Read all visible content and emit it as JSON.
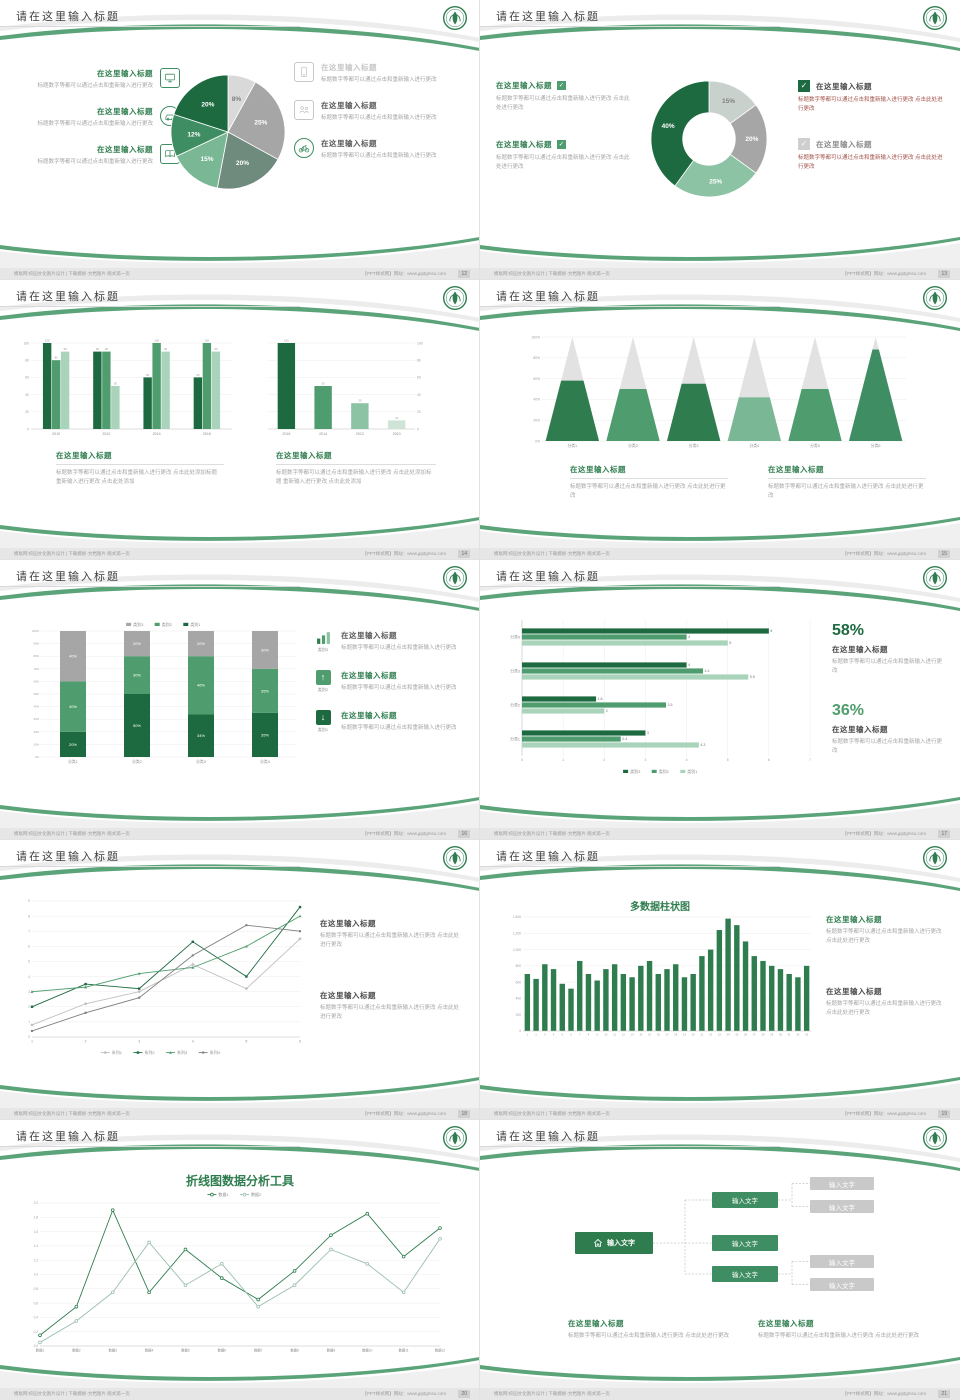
{
  "common": {
    "slide_title": "请在这里输入标题",
    "ph_title": "在这里输入标题",
    "body_short": "标题数字等都可以通过点击和重新输入进行更改",
    "body_med": "标题数字等都可以通过点击和重新输入进行更改 点击此处进行更改",
    "body_long": "标题数字等都可以通过点击和重新输入进行更改 点击此处添加标题 重新输入进行更改 点击此处添加",
    "footer_left": "模板网:校园文化图片设计 | 下载模板-文档图片-版式第一页",
    "footer_right": "【PPT样式网】网站：www.jpptgmsu.com",
    "colors": {
      "dark_green": "#1d6a40",
      "green": "#2f7d4f",
      "mid_green": "#4f9d6e",
      "light_green": "#8cc3a4",
      "gray": "#a6a6a6",
      "light_gray": "#d9d9d9"
    }
  },
  "slides": {
    "s12": {
      "page": "12",
      "left": [
        {
          "icon": "monitor-icon"
        },
        {
          "icon": "car-icon"
        },
        {
          "icon": "book-icon"
        }
      ],
      "right": [
        {
          "icon": "phone-icon"
        },
        {
          "icon": "people-icon"
        },
        {
          "icon": "bicycle-icon"
        }
      ]
    },
    "s13": {
      "page": "13"
    },
    "s14": {
      "page": "14"
    },
    "s15": {
      "page": "15"
    },
    "s16": {
      "page": "16",
      "items": [
        {
          "icon": "bar-chart-icon",
          "label": "类别3"
        },
        {
          "icon": "arrow-up-icon",
          "label": "类别2"
        },
        {
          "icon": "arrow-down-icon",
          "label": "类别1"
        }
      ]
    },
    "s17": {
      "page": "17",
      "stats": [
        {
          "pct": "58%"
        },
        {
          "pct": "36%"
        }
      ]
    },
    "s18": {
      "page": "18"
    },
    "s19": {
      "page": "19",
      "chart_title": "多数据柱状图"
    },
    "s20": {
      "page": "20",
      "chart_title": "折线图数据分析工具"
    },
    "s21": {
      "page": "21",
      "main": "输入文字",
      "greens": [
        "输入文字",
        "输入文字",
        "输入文字"
      ],
      "grays": [
        "输入文字",
        "输入文字",
        "输入文字",
        "输入文字"
      ]
    }
  },
  "chart_data": [
    {
      "target": "ch12",
      "type": "pie",
      "labels": [
        "8%",
        "25%",
        "20%",
        "15%",
        "12%",
        "20%"
      ],
      "values": [
        8,
        25,
        20,
        15,
        12,
        20
      ],
      "colors": [
        "#d9d9d9",
        "#a6a6a6",
        "#6e8b7d",
        "#7ab795",
        "#3f8d62",
        "#1d6a40"
      ]
    },
    {
      "target": "ch13",
      "type": "pie",
      "donut": 0.46,
      "labels": [
        "15%",
        "20%",
        "25%",
        "40%"
      ],
      "values": [
        15,
        20,
        25,
        40
      ],
      "colors": [
        "#c9d1cc",
        "#a6a6a6",
        "#8cc3a4",
        "#1d6a40"
      ]
    },
    {
      "target": "ch14a",
      "type": "bar",
      "categories": [
        "2010",
        "2012",
        "2014",
        "2016"
      ],
      "series": [
        {
          "name": "系列1",
          "color": "#1d6a40",
          "values": [
            100,
            90,
            60,
            60
          ]
        },
        {
          "name": "系列2",
          "color": "#4f9d6e",
          "values": [
            80,
            90,
            100,
            100
          ]
        },
        {
          "name": "系列3",
          "color": "#a9d4bb",
          "values": [
            90,
            50,
            90,
            90
          ]
        }
      ],
      "ylim": [
        0,
        100
      ],
      "yticks": [
        0,
        20,
        40,
        60,
        80,
        100
      ],
      "show_values": true
    },
    {
      "target": "ch14b",
      "type": "bar",
      "axis": "right",
      "max_bw": 18,
      "categories": [
        "2016",
        "2014",
        "2012",
        "2010"
      ],
      "series": [
        {
          "name": "系列1",
          "colors": [
            "#1d6a40",
            "#4f9d6e",
            "#8cc3a4",
            "#cde4d6"
          ],
          "values": [
            100,
            50,
            30,
            10
          ]
        }
      ],
      "ylim": [
        0,
        100
      ],
      "yticks": [
        0,
        20,
        40,
        60,
        80,
        100
      ],
      "show_values": true
    },
    {
      "target": "ch15",
      "type": "cone",
      "categories": [
        "分类1",
        "分类2",
        "分类3",
        "分类4",
        "分类5",
        "分类6"
      ],
      "values": [
        58,
        50,
        55,
        42,
        50,
        88
      ],
      "colors": [
        "#2f7d4f",
        "#4f9d6e",
        "#2f7d4f",
        "#7ab795",
        "#4f9d6e",
        "#3f8d62"
      ],
      "yticks": [
        0,
        20,
        40,
        60,
        80,
        100
      ],
      "ylabels": [
        "0%",
        "20%",
        "40%",
        "60%",
        "80%",
        "100%"
      ]
    },
    {
      "target": "ch16",
      "type": "stacked",
      "categories": [
        "分类1",
        "分类2",
        "分类3",
        "分类4"
      ],
      "series": [
        {
          "name": "类别1",
          "color": "#1d6a40",
          "values": [
            20,
            50,
            34,
            35
          ]
        },
        {
          "name": "类别2",
          "color": "#4f9d6e",
          "values": [
            40,
            30,
            46,
            35
          ]
        },
        {
          "name": "类别3",
          "color": "#a6a6a6",
          "values": [
            40,
            20,
            20,
            30
          ]
        }
      ],
      "yticks": [
        0,
        10,
        20,
        30,
        40,
        50,
        60,
        70,
        80,
        90,
        100
      ],
      "ylabels": [
        "0%",
        "10%",
        "20%",
        "30%",
        "40%",
        "50%",
        "60%",
        "70%",
        "80%",
        "90%",
        "100%"
      ],
      "legend": [
        {
          "label": "类别3",
          "color": "#a6a6a6"
        },
        {
          "label": "类别2",
          "color": "#4f9d6e"
        },
        {
          "label": "类别1",
          "color": "#1d6a40"
        }
      ]
    },
    {
      "target": "ch17",
      "type": "hbar",
      "categories": [
        "分类4",
        "分类3",
        "分类2",
        "分类1"
      ],
      "series": [
        {
          "name": "类别3",
          "color": "#1d6a40",
          "values": [
            6,
            4,
            1.8,
            3
          ]
        },
        {
          "name": "类别2",
          "color": "#4f9d6e",
          "values": [
            4,
            4.4,
            3.5,
            2.4
          ]
        },
        {
          "name": "类别1",
          "color": "#a9d4bb",
          "values": [
            5,
            5.5,
            2,
            4.3
          ]
        }
      ],
      "xlim": [
        0,
        7
      ],
      "xticks": [
        0,
        1,
        2,
        3,
        4,
        5,
        6,
        7
      ],
      "legend": [
        {
          "label": "类别3",
          "color": "#1d6a40"
        },
        {
          "label": "类别2",
          "color": "#4f9d6e"
        },
        {
          "label": "类别1",
          "color": "#a9d4bb"
        }
      ]
    },
    {
      "target": "ch18",
      "type": "line",
      "x": [
        "1",
        "2",
        "3",
        "4",
        "5",
        "6"
      ],
      "ylim": [
        0,
        9
      ],
      "yticks": [
        0,
        1,
        2,
        3,
        4,
        5,
        6,
        7,
        8,
        9
      ],
      "legend_pos": "bottom",
      "series": [
        {
          "name": "系列1",
          "color": "#bfbfbf",
          "marker": "diamond",
          "values": [
            0.8,
            2.2,
            3,
            4.8,
            3.2,
            6.5
          ]
        },
        {
          "name": "系列2",
          "color": "#1d6a40",
          "marker": "square",
          "values": [
            2,
            3.5,
            3.2,
            6.3,
            4,
            8.6
          ]
        },
        {
          "name": "系列3",
          "color": "#4f9d6e",
          "marker": "triangle",
          "values": [
            3,
            3.3,
            4.2,
            4.6,
            6,
            8
          ]
        },
        {
          "name": "系列4",
          "color": "#7f7f7f",
          "marker": "dot",
          "values": [
            0.4,
            1.6,
            2.6,
            5.4,
            7.4,
            7
          ]
        }
      ]
    },
    {
      "target": "ch19",
      "type": "column",
      "color": "#2f7d4f",
      "values": [
        700,
        640,
        820,
        760,
        580,
        520,
        860,
        700,
        620,
        760,
        820,
        700,
        660,
        800,
        860,
        700,
        760,
        820,
        660,
        700,
        920,
        1000,
        1240,
        1380,
        1300,
        1100,
        920,
        860,
        800,
        760,
        700,
        660,
        800
      ],
      "xlabels": [
        "1",
        "2",
        "3",
        "4",
        "5",
        "6",
        "7",
        "8",
        "9",
        "10",
        "11",
        "12",
        "13",
        "14",
        "15",
        "16",
        "17",
        "18",
        "19",
        "20",
        "21",
        "22",
        "23",
        "24",
        "25",
        "26",
        "27",
        "28",
        "29",
        "30",
        "31",
        "32",
        "33"
      ],
      "ylim": [
        0,
        1400
      ],
      "yticks": [
        0,
        200,
        400,
        600,
        800,
        1000,
        1200,
        1400
      ],
      "ylabels": [
        "0",
        "200",
        "400",
        "600",
        "800",
        "1,000",
        "1,200",
        "1,400"
      ]
    },
    {
      "target": "ch20",
      "type": "line",
      "x": [
        "数据1",
        "数据2",
        "数据3",
        "数据4",
        "数据5",
        "数据6",
        "数据7",
        "数据8",
        "数据9",
        "数据10",
        "数据11",
        "数据12"
      ],
      "ylim": [
        0,
        2
      ],
      "yticks": [
        0,
        0.2,
        0.4,
        0.6,
        0.8,
        1,
        1.2,
        1.4,
        1.6,
        1.8,
        2
      ],
      "ylabels": [
        "0.0",
        "0.2",
        "0.4",
        "0.6",
        "0.8",
        "1.0",
        "1.2",
        "1.4",
        "1.6",
        "1.8",
        "2.0"
      ],
      "legend_pos": "top",
      "series": [
        {
          "name": "数据1",
          "color": "#2f7d4f",
          "marker": "circle",
          "values": [
            0.15,
            0.55,
            1.9,
            0.75,
            1.35,
            0.95,
            0.65,
            1.05,
            1.55,
            1.85,
            1.25,
            1.65
          ]
        },
        {
          "name": "数据2",
          "color": "#9bbfae",
          "marker": "circle",
          "values": [
            0.05,
            0.35,
            0.75,
            1.45,
            0.85,
            1.15,
            0.55,
            0.85,
            1.35,
            1.15,
            0.75,
            1.5
          ]
        }
      ]
    }
  ]
}
